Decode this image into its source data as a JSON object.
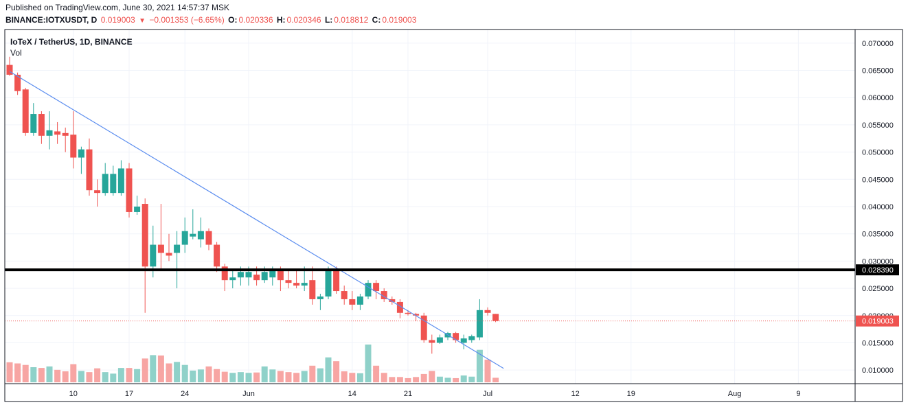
{
  "header": {
    "published": "Published on TradingView.com, June 30, 2021 14:57:37 MSK",
    "symbol": "BINANCE:IOTXUSDT, D",
    "last": "0.019003",
    "change_arrow": "▼",
    "change": "−0.001353 (−6.65%)",
    "o_label": "O:",
    "o_value": "0.020336",
    "h_label": "H:",
    "h_value": "0.020346",
    "l_label": "L:",
    "l_value": "0.018812",
    "c_label": "C:",
    "c_value": "0.019003"
  },
  "colors": {
    "up": "#26a69a",
    "down": "#ef5350",
    "vol_up": "#8fd1c9",
    "vol_down": "#f7a5a3",
    "trendline": "#5b8def",
    "level": "#000000",
    "price_line": "#ef5350"
  },
  "chart_data": {
    "type": "candlestick",
    "title": "IoTeX / TetherUS, 1D, BINANCE",
    "volume_label": "Vol",
    "ylim": [
      0.0075,
      0.0725
    ],
    "y_ticks": [
      "0.070000",
      "0.065000",
      "0.060000",
      "0.055000",
      "0.050000",
      "0.045000",
      "0.040000",
      "0.035000",
      "0.030000",
      "0.025000",
      "0.020000",
      "0.015000",
      "0.010000"
    ],
    "x_ticks": [
      {
        "label": "10",
        "day": 10
      },
      {
        "label": "17",
        "day": 17
      },
      {
        "label": "24",
        "day": 24
      },
      {
        "label": "Jun",
        "day": 32
      },
      {
        "label": "14",
        "day": 45
      },
      {
        "label": "21",
        "day": 52
      },
      {
        "label": "Jul",
        "day": 62
      },
      {
        "label": "12",
        "day": 73
      },
      {
        "label": "19",
        "day": 80
      },
      {
        "label": "Aug",
        "day": 93
      },
      {
        "label": "9",
        "day": 101
      }
    ],
    "x_note": "day = day number counted from May 1, 2021 (May 10 = 10, June 1 = 32)",
    "candles": [
      {
        "day": 2,
        "o": 0.066,
        "h": 0.0675,
        "l": 0.064,
        "c": 0.0642,
        "v": 0.53
      },
      {
        "day": 3,
        "o": 0.0642,
        "h": 0.0646,
        "l": 0.0605,
        "c": 0.0612,
        "v": 0.5
      },
      {
        "day": 4,
        "o": 0.0615,
        "h": 0.0618,
        "l": 0.053,
        "c": 0.0535,
        "v": 0.46
      },
      {
        "day": 5,
        "o": 0.0535,
        "h": 0.059,
        "l": 0.053,
        "c": 0.057,
        "v": 0.4
      },
      {
        "day": 6,
        "o": 0.057,
        "h": 0.0575,
        "l": 0.0515,
        "c": 0.053,
        "v": 0.38
      },
      {
        "day": 7,
        "o": 0.053,
        "h": 0.0575,
        "l": 0.0505,
        "c": 0.054,
        "v": 0.42
      },
      {
        "day": 8,
        "o": 0.0538,
        "h": 0.0555,
        "l": 0.0515,
        "c": 0.0532,
        "v": 0.33
      },
      {
        "day": 9,
        "o": 0.0535,
        "h": 0.0545,
        "l": 0.05,
        "c": 0.053,
        "v": 0.29
      },
      {
        "day": 10,
        "o": 0.0532,
        "h": 0.0575,
        "l": 0.047,
        "c": 0.049,
        "v": 0.48
      },
      {
        "day": 11,
        "o": 0.049,
        "h": 0.051,
        "l": 0.046,
        "c": 0.0505,
        "v": 0.3
      },
      {
        "day": 12,
        "o": 0.0505,
        "h": 0.0525,
        "l": 0.042,
        "c": 0.043,
        "v": 0.27
      },
      {
        "day": 13,
        "o": 0.043,
        "h": 0.045,
        "l": 0.04,
        "c": 0.0425,
        "v": 0.37
      },
      {
        "day": 14,
        "o": 0.0425,
        "h": 0.048,
        "l": 0.042,
        "c": 0.046,
        "v": 0.27
      },
      {
        "day": 15,
        "o": 0.0425,
        "h": 0.0475,
        "l": 0.042,
        "c": 0.046,
        "v": 0.23
      },
      {
        "day": 16,
        "o": 0.0425,
        "h": 0.0485,
        "l": 0.042,
        "c": 0.047,
        "v": 0.38
      },
      {
        "day": 17,
        "o": 0.047,
        "h": 0.048,
        "l": 0.038,
        "c": 0.039,
        "v": 0.38
      },
      {
        "day": 18,
        "o": 0.039,
        "h": 0.042,
        "l": 0.0385,
        "c": 0.04,
        "v": 0.35
      },
      {
        "day": 19,
        "o": 0.0405,
        "h": 0.0415,
        "l": 0.0205,
        "c": 0.029,
        "v": 0.63
      },
      {
        "day": 20,
        "o": 0.029,
        "h": 0.0365,
        "l": 0.027,
        "c": 0.033,
        "v": 0.72
      },
      {
        "day": 21,
        "o": 0.033,
        "h": 0.0405,
        "l": 0.0285,
        "c": 0.0315,
        "v": 0.71
      },
      {
        "day": 22,
        "o": 0.0315,
        "h": 0.035,
        "l": 0.03,
        "c": 0.031,
        "v": 0.5
      },
      {
        "day": 23,
        "o": 0.0315,
        "h": 0.0355,
        "l": 0.025,
        "c": 0.033,
        "v": 0.54
      },
      {
        "day": 24,
        "o": 0.033,
        "h": 0.038,
        "l": 0.0315,
        "c": 0.0355,
        "v": 0.46
      },
      {
        "day": 25,
        "o": 0.0345,
        "h": 0.0395,
        "l": 0.034,
        "c": 0.035,
        "v": 0.31
      },
      {
        "day": 26,
        "o": 0.034,
        "h": 0.038,
        "l": 0.0325,
        "c": 0.0355,
        "v": 0.34
      },
      {
        "day": 27,
        "o": 0.0355,
        "h": 0.036,
        "l": 0.032,
        "c": 0.033,
        "v": 0.42
      },
      {
        "day": 28,
        "o": 0.033,
        "h": 0.0335,
        "l": 0.028,
        "c": 0.029,
        "v": 0.35
      },
      {
        "day": 29,
        "o": 0.029,
        "h": 0.0295,
        "l": 0.0245,
        "c": 0.0265,
        "v": 0.28
      },
      {
        "day": 30,
        "o": 0.0265,
        "h": 0.0285,
        "l": 0.025,
        "c": 0.027,
        "v": 0.25
      },
      {
        "day": 31,
        "o": 0.027,
        "h": 0.029,
        "l": 0.0255,
        "c": 0.028,
        "v": 0.27
      },
      {
        "day": 32,
        "o": 0.027,
        "h": 0.029,
        "l": 0.0255,
        "c": 0.028,
        "v": 0.25
      },
      {
        "day": 33,
        "o": 0.0275,
        "h": 0.029,
        "l": 0.0255,
        "c": 0.0265,
        "v": 0.26
      },
      {
        "day": 34,
        "o": 0.0265,
        "h": 0.029,
        "l": 0.026,
        "c": 0.028,
        "v": 0.42
      },
      {
        "day": 35,
        "o": 0.027,
        "h": 0.029,
        "l": 0.0255,
        "c": 0.0285,
        "v": 0.34
      },
      {
        "day": 36,
        "o": 0.0285,
        "h": 0.029,
        "l": 0.0245,
        "c": 0.0265,
        "v": 0.3
      },
      {
        "day": 37,
        "o": 0.0265,
        "h": 0.0285,
        "l": 0.025,
        "c": 0.026,
        "v": 0.27
      },
      {
        "day": 38,
        "o": 0.026,
        "h": 0.0285,
        "l": 0.025,
        "c": 0.0255,
        "v": 0.25
      },
      {
        "day": 39,
        "o": 0.0255,
        "h": 0.029,
        "l": 0.0245,
        "c": 0.026,
        "v": 0.3
      },
      {
        "day": 40,
        "o": 0.0265,
        "h": 0.029,
        "l": 0.022,
        "c": 0.023,
        "v": 0.44
      },
      {
        "day": 41,
        "o": 0.023,
        "h": 0.024,
        "l": 0.021,
        "c": 0.0235,
        "v": 0.37
      },
      {
        "day": 42,
        "o": 0.0235,
        "h": 0.029,
        "l": 0.023,
        "c": 0.0285,
        "v": 0.66
      },
      {
        "day": 43,
        "o": 0.0285,
        "h": 0.029,
        "l": 0.024,
        "c": 0.0245,
        "v": 0.56
      },
      {
        "day": 44,
        "o": 0.0245,
        "h": 0.0255,
        "l": 0.022,
        "c": 0.023,
        "v": 0.29
      },
      {
        "day": 45,
        "o": 0.023,
        "h": 0.0245,
        "l": 0.021,
        "c": 0.022,
        "v": 0.25
      },
      {
        "day": 46,
        "o": 0.022,
        "h": 0.024,
        "l": 0.021,
        "c": 0.0235,
        "v": 0.24
      },
      {
        "day": 47,
        "o": 0.0235,
        "h": 0.0265,
        "l": 0.023,
        "c": 0.026,
        "v": 1.0
      },
      {
        "day": 48,
        "o": 0.026,
        "h": 0.0265,
        "l": 0.023,
        "c": 0.0245,
        "v": 0.44
      },
      {
        "day": 49,
        "o": 0.0245,
        "h": 0.025,
        "l": 0.0225,
        "c": 0.023,
        "v": 0.25
      },
      {
        "day": 50,
        "o": 0.023,
        "h": 0.0235,
        "l": 0.022,
        "c": 0.0225,
        "v": 0.14
      },
      {
        "day": 51,
        "o": 0.0225,
        "h": 0.023,
        "l": 0.0195,
        "c": 0.0205,
        "v": 0.14
      },
      {
        "day": 52,
        "o": 0.0205,
        "h": 0.021,
        "l": 0.02,
        "c": 0.0203,
        "v": 0.11
      },
      {
        "day": 53,
        "o": 0.0203,
        "h": 0.0205,
        "l": 0.019,
        "c": 0.02,
        "v": 0.14
      },
      {
        "day": 54,
        "o": 0.02,
        "h": 0.0205,
        "l": 0.015,
        "c": 0.0155,
        "v": 0.22
      },
      {
        "day": 55,
        "o": 0.0155,
        "h": 0.0165,
        "l": 0.013,
        "c": 0.015,
        "v": 0.3
      },
      {
        "day": 56,
        "o": 0.015,
        "h": 0.0165,
        "l": 0.0148,
        "c": 0.016,
        "v": 0.15
      },
      {
        "day": 57,
        "o": 0.016,
        "h": 0.017,
        "l": 0.0155,
        "c": 0.0168,
        "v": 0.12
      },
      {
        "day": 58,
        "o": 0.0168,
        "h": 0.017,
        "l": 0.015,
        "c": 0.0155,
        "v": 0.11
      },
      {
        "day": 59,
        "o": 0.015,
        "h": 0.0165,
        "l": 0.0138,
        "c": 0.0158,
        "v": 0.18
      },
      {
        "day": 60,
        "o": 0.0155,
        "h": 0.0165,
        "l": 0.015,
        "c": 0.0162,
        "v": 0.15
      },
      {
        "day": 61,
        "o": 0.016,
        "h": 0.023,
        "l": 0.0155,
        "c": 0.021,
        "v": 0.86
      },
      {
        "day": 62,
        "o": 0.021,
        "h": 0.0215,
        "l": 0.02,
        "c": 0.0205,
        "v": 0.6
      },
      {
        "day": 63,
        "o": 0.0203,
        "h": 0.0203,
        "l": 0.0188,
        "c": 0.019,
        "v": 0.12
      }
    ],
    "trendline": {
      "from": {
        "day": 2,
        "price": 0.0648
      },
      "to": {
        "day": 64,
        "price": 0.0103
      }
    },
    "horizontal_level": {
      "price": 0.02839,
      "label": "0.028390"
    },
    "last_price": {
      "price": 0.019003,
      "label": "0.019003"
    }
  }
}
